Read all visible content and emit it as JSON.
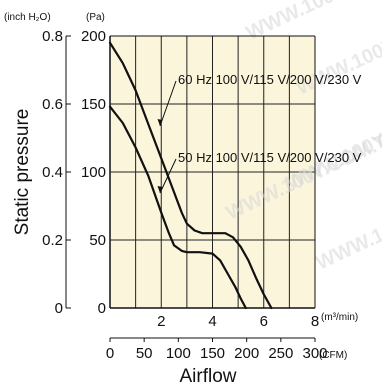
{
  "chart_data": {
    "type": "line",
    "title": "",
    "xlabel": "Airflow",
    "ylabel": "Static pressure",
    "x_unit": "(m³/min)",
    "x_unit_secondary": "(CFM)",
    "y_unit": "(Pa)",
    "y_unit_secondary": "(inch H₂O)",
    "xlim": [
      0,
      8
    ],
    "ylim": [
      0,
      200
    ],
    "x_ticks": [
      2,
      4,
      6,
      8
    ],
    "y_ticks": [
      0,
      50,
      100,
      150,
      200
    ],
    "x2_ticks": [
      0,
      50,
      100,
      150,
      200,
      250,
      300
    ],
    "y2_ticks": [
      "0",
      "0.2",
      "0.4",
      "0.6",
      "0.8"
    ],
    "grid": true,
    "series": [
      {
        "name": "60 Hz 100 V/115 V/200 V/230 V",
        "x": [
          0,
          0.5,
          1.0,
          1.5,
          2.0,
          2.5,
          2.8,
          3.0,
          3.3,
          3.6,
          4.0,
          4.5,
          4.8,
          5.1,
          5.4,
          5.7,
          6.0,
          6.3
        ],
        "y": [
          195,
          180,
          160,
          135,
          110,
          85,
          70,
          62,
          57,
          55,
          55,
          55,
          52,
          45,
          35,
          22,
          10,
          0
        ]
      },
      {
        "name": "50 Hz 100 V/115 V/200 V/230 V",
        "x": [
          0,
          0.5,
          1.0,
          1.5,
          2.0,
          2.3,
          2.5,
          2.8,
          3.0,
          3.5,
          4.0,
          4.3,
          4.6,
          4.9,
          5.1,
          5.3
        ],
        "y": [
          148,
          136,
          118,
          97,
          70,
          55,
          46,
          42,
          41,
          41,
          40,
          35,
          25,
          15,
          7,
          0
        ]
      }
    ]
  },
  "watermark_text": "WWW.100Y.COM.TW"
}
